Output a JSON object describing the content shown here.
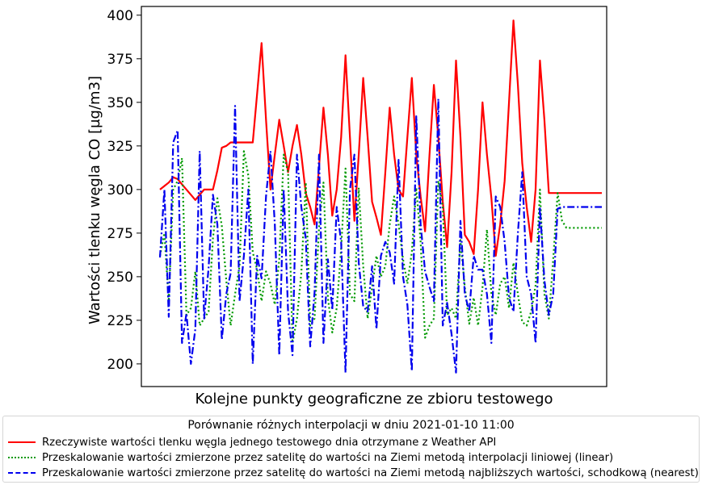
{
  "chart_data": {
    "type": "line",
    "title": "",
    "xlabel": "Kolejne punkty geograficzne ze zbioru testowego",
    "ylabel": "Wartości tlenku węgla CO [µg/m3]",
    "ylim": [
      187,
      405
    ],
    "yticks": [
      200,
      225,
      250,
      275,
      300,
      325,
      350,
      375,
      400
    ],
    "grid": false,
    "legend": {
      "placement": "below",
      "title": "Porównanie różnych interpolacji w dniu 2021-01-10 11:00"
    },
    "x": [
      0,
      1,
      2,
      3,
      4,
      5,
      6,
      7,
      8,
      9,
      10,
      11,
      12,
      13,
      14,
      15,
      16,
      17,
      18,
      19,
      20,
      21,
      22,
      23,
      24,
      25,
      26,
      27,
      28,
      29,
      30,
      31,
      32,
      33,
      34,
      35,
      36,
      37,
      38,
      39,
      40,
      41,
      42,
      43,
      44,
      45,
      46,
      47,
      48,
      49,
      50,
      51,
      52,
      53,
      54,
      55,
      56,
      57,
      58,
      59,
      60,
      61,
      62,
      63,
      64,
      65,
      66,
      67,
      68,
      69,
      70,
      71,
      72,
      73,
      74,
      75,
      76,
      77,
      78,
      79,
      80,
      81,
      82,
      83,
      84,
      85,
      86,
      87,
      88,
      89,
      90,
      91,
      92,
      93,
      94,
      95,
      96,
      97,
      98,
      99,
      100
    ],
    "series": [
      {
        "name": "Rzeczywiste wartości tlenku węgla jednego testowego dnia otrzymane z Weather API",
        "color": "#ff0000",
        "style": "solid",
        "values": [
          300,
          302,
          304,
          307,
          306,
          303,
          300,
          297,
          294,
          297,
          300,
          300,
          300,
          311,
          324,
          325,
          327,
          327,
          327,
          327,
          327,
          327,
          355,
          384,
          340,
          300,
          320,
          340,
          325,
          310,
          325,
          337,
          320,
          298,
          290,
          280,
          313,
          347,
          320,
          285,
          300,
          330,
          377,
          330,
          282,
          320,
          364,
          330,
          293,
          284,
          274,
          310,
          347,
          320,
          300,
          296,
          330,
          364,
          320,
          296,
          276,
          320,
          360,
          330,
          293,
          267,
          310,
          374,
          330,
          274,
          270,
          263,
          300,
          350,
          320,
          295,
          262,
          280,
          305,
          350,
          397,
          360,
          315,
          290,
          270,
          300,
          374,
          340,
          298,
          298,
          298,
          298,
          298,
          298,
          298,
          298,
          298,
          298,
          298,
          298,
          298
        ]
      },
      {
        "name": "Przeskalowanie wartości zmierzone przez satelitę do wartości na Ziemi metodą interpolacji liniowej (linear)",
        "color": "#009900",
        "style": "dotted",
        "values": [
          262,
          275,
          236,
          300,
          305,
          318,
          228,
          232,
          253,
          222,
          226,
          230,
          272,
          295,
          279,
          248,
          222,
          240,
          256,
          322,
          308,
          264,
          254,
          236,
          253,
          246,
          234,
          260,
          320,
          310,
          212,
          226,
          252,
          304,
          222,
          226,
          278,
          304,
          238,
          218,
          232,
          266,
          312,
          240,
          236,
          301,
          256,
          226,
          244,
          262,
          250,
          256,
          280,
          296,
          280,
          260,
          246,
          264,
          301,
          270,
          215,
          222,
          226,
          305,
          290,
          228,
          232,
          226,
          271,
          244,
          223,
          238,
          222,
          244,
          277,
          240,
          228,
          246,
          250,
          232,
          258,
          240,
          224,
          222,
          230,
          245,
          300,
          240,
          226,
          260,
          298,
          282,
          278,
          278,
          278,
          278,
          278,
          278,
          278,
          278,
          278
        ]
      },
      {
        "name": "Przeskalowanie wartości zmierzone przez satelitę do wartości na Ziemi metodą najbliższych wartości, schodkową (nearest)",
        "color": "#0000ee",
        "style": "dashdot",
        "values": [
          261,
          300,
          227,
          327,
          334,
          212,
          229,
          200,
          220,
          322,
          226,
          255,
          297,
          280,
          214,
          240,
          252,
          348,
          236,
          262,
          300,
          200,
          262,
          249,
          296,
          322,
          280,
          205,
          300,
          230,
          205,
          320,
          290,
          272,
          210,
          241,
          320,
          212,
          260,
          231,
          290,
          270,
          195,
          300,
          320,
          258,
          233,
          230,
          256,
          220,
          262,
          270,
          264,
          246,
          317,
          250,
          234,
          196,
          342,
          280,
          253,
          244,
          236,
          352,
          222,
          235,
          217,
          195,
          282,
          240,
          230,
          262,
          254,
          254,
          240,
          212,
          296,
          290,
          270,
          238,
          230,
          275,
          310,
          250,
          240,
          212,
          290,
          248,
          228,
          240,
          289,
          290,
          290,
          290,
          290,
          290,
          290,
          290,
          290,
          290,
          290
        ]
      }
    ]
  }
}
